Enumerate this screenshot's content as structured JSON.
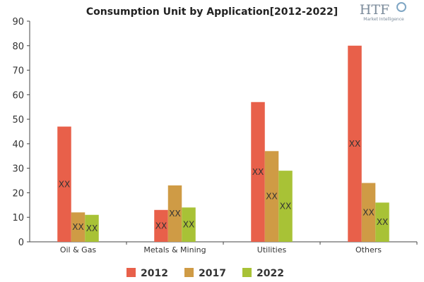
{
  "logo": {
    "main": "HTF",
    "sub": "Market Intelligence"
  },
  "chart_data": {
    "type": "bar",
    "title": "Consumption Unit by  Application[2012-2022]",
    "xlabel": "",
    "ylabel": "",
    "ylim": [
      0,
      90
    ],
    "yticks": [
      0,
      10,
      20,
      30,
      40,
      50,
      60,
      70,
      80,
      90
    ],
    "grid": false,
    "legend_position": "bottom",
    "categories": [
      "Oil & Gas",
      "Metals & Mining",
      "Utilities",
      "Others"
    ],
    "series": [
      {
        "name": "2012",
        "color": "#e8604a",
        "values": [
          47,
          13,
          57,
          80
        ],
        "labels": [
          "XX",
          "XX",
          "XX",
          "XX"
        ]
      },
      {
        "name": "2017",
        "color": "#cf9b45",
        "values": [
          12,
          23,
          37,
          24
        ],
        "labels": [
          "XX",
          "XX",
          "XX",
          "XX"
        ]
      },
      {
        "name": "2022",
        "color": "#a8c236",
        "values": [
          11,
          14,
          29,
          16
        ],
        "labels": [
          "XX",
          "XX",
          "XX",
          "XX"
        ]
      }
    ]
  }
}
